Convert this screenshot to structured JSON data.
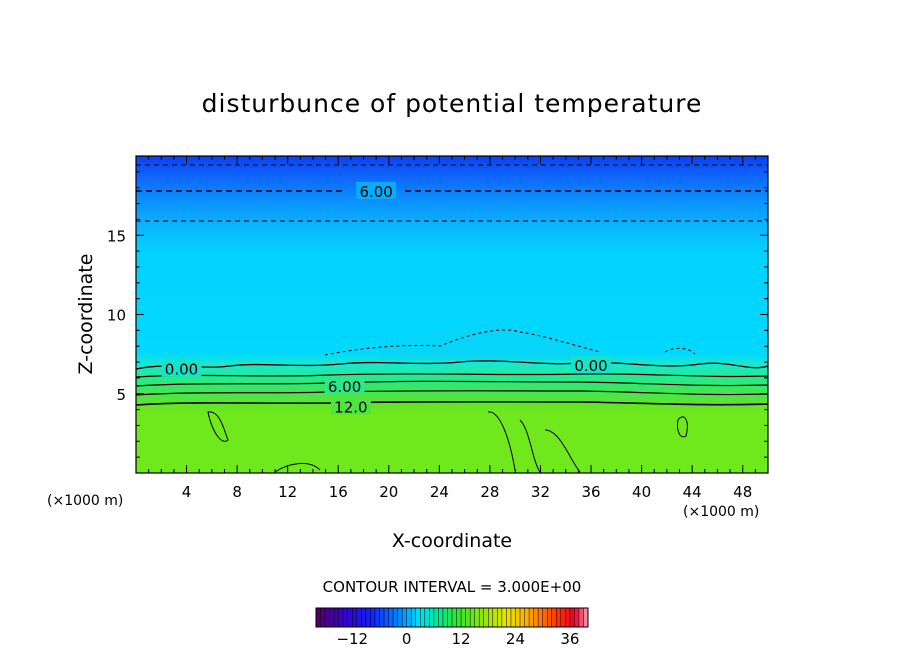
{
  "chart_data": {
    "type": "heatmap",
    "title": "disturbunce of potential temperature",
    "xlabel": "X-coordinate",
    "ylabel": "Z-coordinate",
    "x_unit": "(×1000 m)",
    "xlim": [
      0,
      50
    ],
    "ylim": [
      0,
      20
    ],
    "x_ticks": [
      4,
      8,
      12,
      16,
      20,
      24,
      28,
      32,
      36,
      40,
      44,
      48
    ],
    "y_ticks": [
      5,
      10,
      15
    ],
    "contour_interval_label": "CONTOUR INTERVAL = 3.000E+00",
    "contour_labels": [
      {
        "text": "6.00",
        "x": 19,
        "z": 17.8
      },
      {
        "text": "0.00",
        "x": 3.6,
        "z": 6.6
      },
      {
        "text": "0.00",
        "x": 36,
        "z": 6.8
      },
      {
        "text": "6.00",
        "x": 16.5,
        "z": 5.5
      },
      {
        "text": "12.0",
        "x": 17,
        "z": 4.2
      }
    ],
    "colorbar": {
      "min": -20,
      "max": 40,
      "ticks": [
        -12,
        0,
        12,
        24,
        36
      ]
    },
    "colors": {
      "background": "#ffffff",
      "lower_layer": "#6fe81c",
      "mid_layer": "#00d8ff"
    }
  }
}
